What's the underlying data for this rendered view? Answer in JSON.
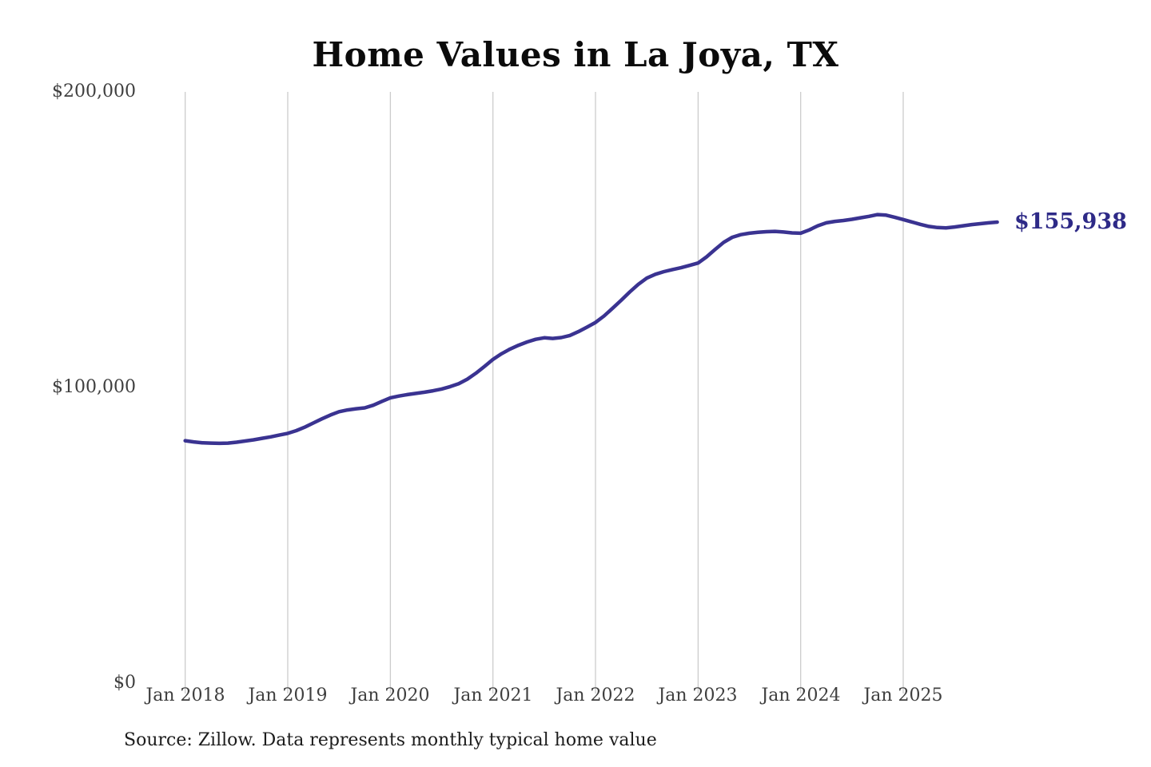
{
  "chart_data": {
    "type": "line",
    "title": "Home Values in La Joya, TX",
    "source_note": "Source: Zillow. Data represents monthly typical home value",
    "end_label": "$155,938",
    "last_value": 155938,
    "x_tick_labels": [
      "Jan 2018",
      "Jan 2019",
      "Jan 2020",
      "Jan 2021",
      "Jan 2022",
      "Jan 2023",
      "Jan 2024",
      "Jan 2025"
    ],
    "y_tick_labels": [
      "$0",
      "$100,000",
      "$200,000"
    ],
    "y_tick_values": [
      0,
      100000,
      200000
    ],
    "ylim": [
      0,
      200000
    ],
    "grid": "vertical-only",
    "legend_position": "none",
    "start_month": "Jan 2018",
    "end_month": "Dec 2025",
    "colors": {
      "line": "#3a3391",
      "end_label": "#2e2a87",
      "gridline": "#cccccc",
      "tick_text": "#3f3f3f",
      "title_text": "#0b0b0b",
      "background": "#ffffff"
    },
    "series": [
      {
        "name": "Monthly typical home value ($)",
        "values": [
          82000,
          81600,
          81300,
          81200,
          81100,
          81200,
          81500,
          81900,
          82300,
          82800,
          83300,
          83900,
          84500,
          85400,
          86600,
          88000,
          89400,
          90700,
          91800,
          92400,
          92800,
          93100,
          94000,
          95300,
          96500,
          97100,
          97600,
          98000,
          98400,
          98900,
          99500,
          100300,
          101300,
          102800,
          104800,
          107100,
          109500,
          111400,
          113000,
          114300,
          115400,
          116300,
          116800,
          116600,
          116900,
          117600,
          118900,
          120400,
          122000,
          124200,
          126800,
          129500,
          132300,
          134900,
          137000,
          138300,
          139200,
          139900,
          140500,
          141300,
          142100,
          144200,
          146700,
          149100,
          150800,
          151700,
          152200,
          152500,
          152700,
          152800,
          152600,
          152300,
          152200,
          153300,
          154700,
          155700,
          156200,
          156500,
          156900,
          157400,
          157900,
          158500,
          158300,
          157600,
          156800,
          156000,
          155200,
          154500,
          154100,
          154000,
          154300,
          154700,
          155100,
          155400,
          155700,
          155938
        ]
      }
    ]
  }
}
